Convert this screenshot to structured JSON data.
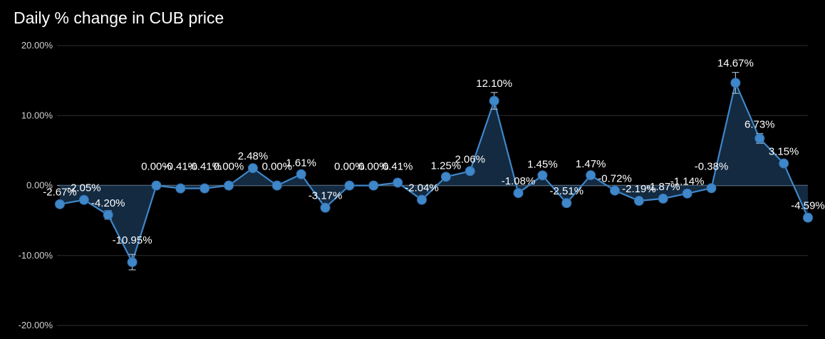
{
  "chart_data": {
    "type": "line",
    "title": "Daily % change in CUB price",
    "xlabel": "",
    "ylabel": "",
    "ylim": [
      -20,
      20
    ],
    "yticks": [
      "20.00%",
      "10.00%",
      "0.00%",
      "-10.00%",
      "-20.00%"
    ],
    "ytick_values": [
      20,
      10,
      0,
      -10,
      -20
    ],
    "grid": true,
    "error_bars": true,
    "fill": "area-to-zero",
    "colors": {
      "line": "#3f87c9",
      "fill": "#142c45",
      "grid": "#2e2e2e",
      "zero_line": "#7a8aa0"
    },
    "series": [
      {
        "values": [
          -2.67,
          -2.05,
          -4.2,
          -10.95,
          0.0,
          -0.41,
          -0.41,
          0.0,
          2.48,
          0.0,
          1.61,
          -3.17,
          0.0,
          0.0,
          0.41,
          -2.04,
          1.25,
          2.06,
          12.1,
          -1.08,
          1.45,
          -2.51,
          1.47,
          -0.72,
          -2.19,
          -1.87,
          -1.14,
          -0.38,
          14.67,
          6.73,
          3.15,
          -4.59
        ],
        "labels": [
          "-2.67%",
          "-2.05%",
          "-4.20%",
          "-10.95%",
          "0.00%",
          "-0.41%",
          "-0.41%",
          "0.00%",
          "2.48%",
          "0.00%",
          "1.61%",
          "-3.17%",
          "0.00%",
          "0.00%",
          "0.41%",
          "-2.04%",
          "1.25%",
          "2.06%",
          "12.10%",
          "-1.08%",
          "1.45%",
          "-2.51%",
          "1.47%",
          "-0.72%",
          "-2.19%",
          "-1.87%",
          "-1.14%",
          "-0.38%",
          "14.67%",
          "6.73%",
          "3.15%",
          "-4.59%"
        ],
        "errors": [
          0.3,
          0.4,
          0.6,
          1.1,
          0.2,
          0.2,
          0.2,
          0.2,
          0.4,
          0.2,
          0.3,
          0.4,
          0.2,
          0.2,
          0.2,
          0.3,
          0.3,
          0.4,
          1.2,
          0.3,
          0.3,
          0.4,
          0.3,
          0.3,
          0.3,
          0.3,
          0.3,
          0.3,
          1.5,
          0.7,
          0.4,
          0.5
        ]
      }
    ]
  }
}
